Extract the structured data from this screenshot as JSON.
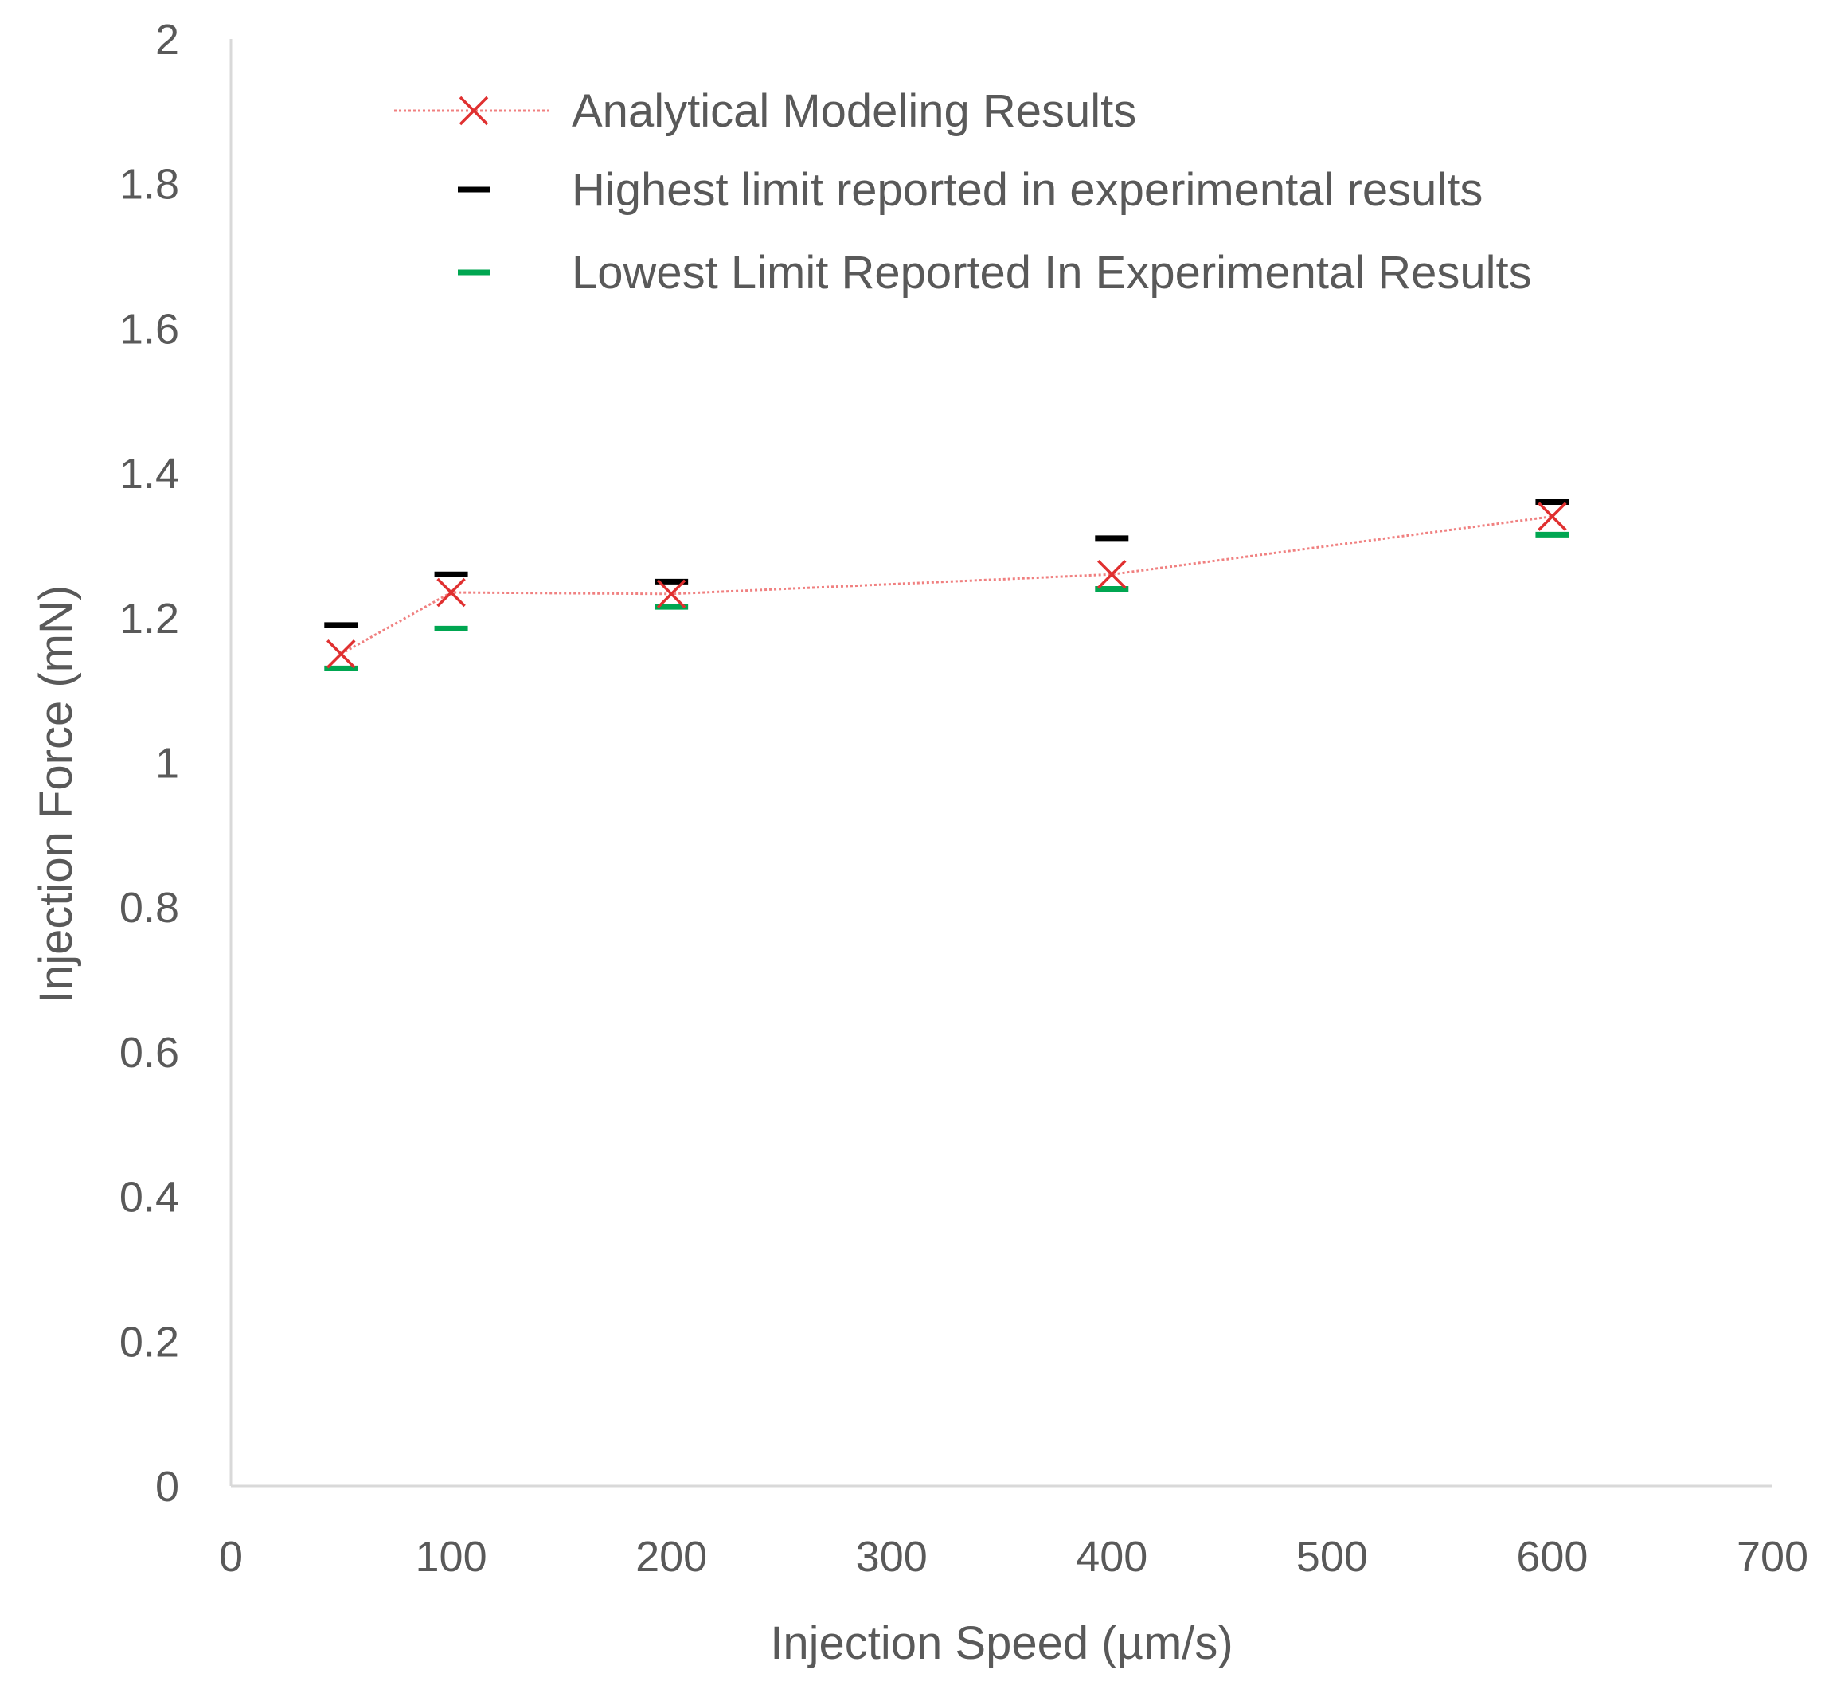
{
  "chart_data": {
    "type": "scatter",
    "title": "",
    "xlabel": "Injection Speed (µm/s)",
    "ylabel": "Injection Force (mN)",
    "xlim": [
      0,
      700
    ],
    "ylim": [
      0,
      2
    ],
    "x_ticks": [
      0,
      100,
      200,
      300,
      400,
      500,
      600,
      700
    ],
    "y_ticks": [
      0,
      0.2,
      0.4,
      0.6,
      0.8,
      1,
      1.2,
      1.4,
      1.6,
      1.8,
      2
    ],
    "x_tick_labels": [
      "0",
      "100",
      "200",
      "300",
      "400",
      "500",
      "600",
      "700"
    ],
    "y_tick_labels": [
      "0",
      "0.2",
      "0.4",
      "0.6",
      "0.8",
      "1",
      "1.2",
      "1.4",
      "1.6",
      "1.8",
      "2"
    ],
    "grid": false,
    "legend_position": "top",
    "series": [
      {
        "name": "Analytical Modeling Results",
        "marker": "x",
        "line": "dotted",
        "color": "#e03030",
        "x": [
          50,
          100,
          200,
          400,
          600
        ],
        "y": [
          1.15,
          1.235,
          1.233,
          1.26,
          1.34
        ]
      },
      {
        "name": "Highest limit reported in experimental results",
        "marker": "dash",
        "line": "none",
        "color": "#000000",
        "x": [
          50,
          100,
          200,
          400,
          600
        ],
        "y": [
          1.19,
          1.26,
          1.25,
          1.31,
          1.36
        ]
      },
      {
        "name": "Lowest Limit Reported In Experimental Results",
        "marker": "dash",
        "line": "none",
        "color": "#00a651",
        "x": [
          50,
          100,
          200,
          400,
          600
        ],
        "y": [
          1.13,
          1.185,
          1.215,
          1.24,
          1.315
        ]
      }
    ]
  }
}
